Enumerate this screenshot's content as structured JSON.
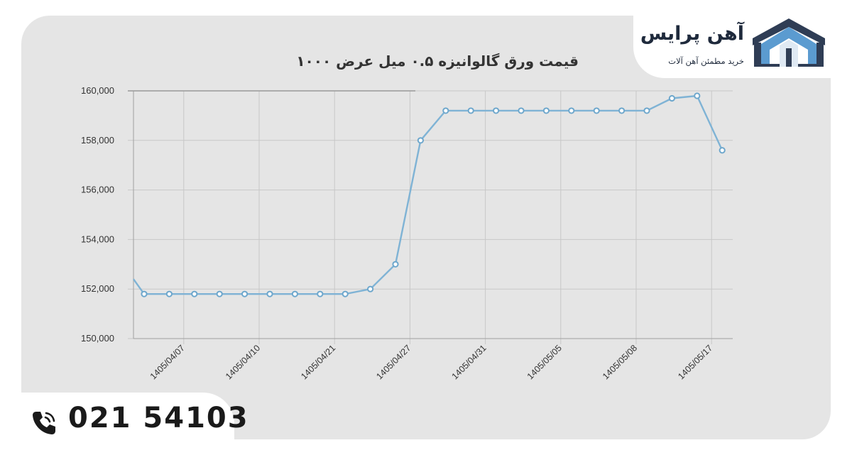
{
  "brand": {
    "name": "آهن پرایس",
    "tagline": "خرید مطمئن آهن آلات",
    "logo_icon": "ahan-price-logo-icon"
  },
  "contact": {
    "phone": "021 54103",
    "phone_icon": "phone-call-icon"
  },
  "colors": {
    "line": "#7fb3d5",
    "marker_stroke": "#6ea7cc",
    "grid": "#c8c8c8",
    "card_background": "#e5e5e5"
  },
  "chart_data": {
    "type": "line",
    "title": "قیمت ورق گالوانیزه ۰.۵ میل عرض ۱۰۰۰",
    "ylim": [
      150000,
      160000
    ],
    "y_ticks": [
      "150,000",
      "152,000",
      "154,000",
      "156,000",
      "158,000",
      "160,000"
    ],
    "x_tick_labels": [
      "1405/04/07",
      "1405/04/10",
      "1405/04/21",
      "1405/04/27",
      "1405/04/31",
      "1405/05/05",
      "1405/05/08",
      "1405/05/17"
    ],
    "grid": true,
    "legend": "none",
    "series": [
      {
        "values": [
          152400,
          151800,
          151800,
          151800,
          151800,
          151800,
          151800,
          151800,
          151800,
          151800,
          152000,
          153000,
          158000,
          159200,
          159200,
          159200,
          159200,
          159200,
          159200,
          159200,
          159200,
          159200,
          159700,
          159800,
          157600
        ]
      }
    ]
  }
}
